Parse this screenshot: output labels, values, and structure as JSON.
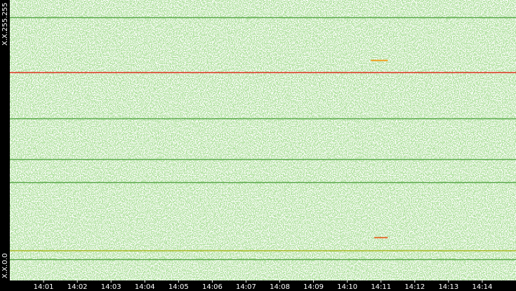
{
  "chart_data": {
    "type": "heatmap",
    "xlim": [
      0,
      15
    ],
    "xticks": [
      {
        "value": 1,
        "label": "14:01"
      },
      {
        "value": 2,
        "label": "14:02"
      },
      {
        "value": 3,
        "label": "14:03"
      },
      {
        "value": 4,
        "label": "14:04"
      },
      {
        "value": 5,
        "label": "14:05"
      },
      {
        "value": 6,
        "label": "14:06"
      },
      {
        "value": 7,
        "label": "14:07"
      },
      {
        "value": 8,
        "label": "14:08"
      },
      {
        "value": 9,
        "label": "14:09"
      },
      {
        "value": 10,
        "label": "14:10"
      },
      {
        "value": 11,
        "label": "14:11"
      },
      {
        "value": 12,
        "label": "14:12"
      },
      {
        "value": 13,
        "label": "14:13"
      },
      {
        "value": 14,
        "label": "14:14"
      }
    ],
    "ylim": [
      0,
      255
    ],
    "yticks": [
      {
        "value": 0,
        "label": "X.X.0.0"
      },
      {
        "value": 255,
        "label": "X.X.255.255"
      }
    ],
    "color": "#6fbf5a",
    "lines": [
      {
        "y": 239,
        "color": "#5aa84a"
      },
      {
        "y": 189,
        "color": "#e0301e"
      },
      {
        "y": 147,
        "color": "#5aa84a"
      },
      {
        "y": 110,
        "color": "#5aa84a"
      },
      {
        "y": 89,
        "color": "#5aa84a"
      },
      {
        "y": 27,
        "color": "#a8b820"
      },
      {
        "y": 19,
        "color": "#5aa84a"
      }
    ],
    "segments": [
      {
        "y": 200,
        "x": [
          10.7,
          11.2
        ],
        "color": "#f0a020"
      },
      {
        "y": 39,
        "x": [
          10.8,
          11.2
        ],
        "color": "#e07030"
      }
    ]
  }
}
